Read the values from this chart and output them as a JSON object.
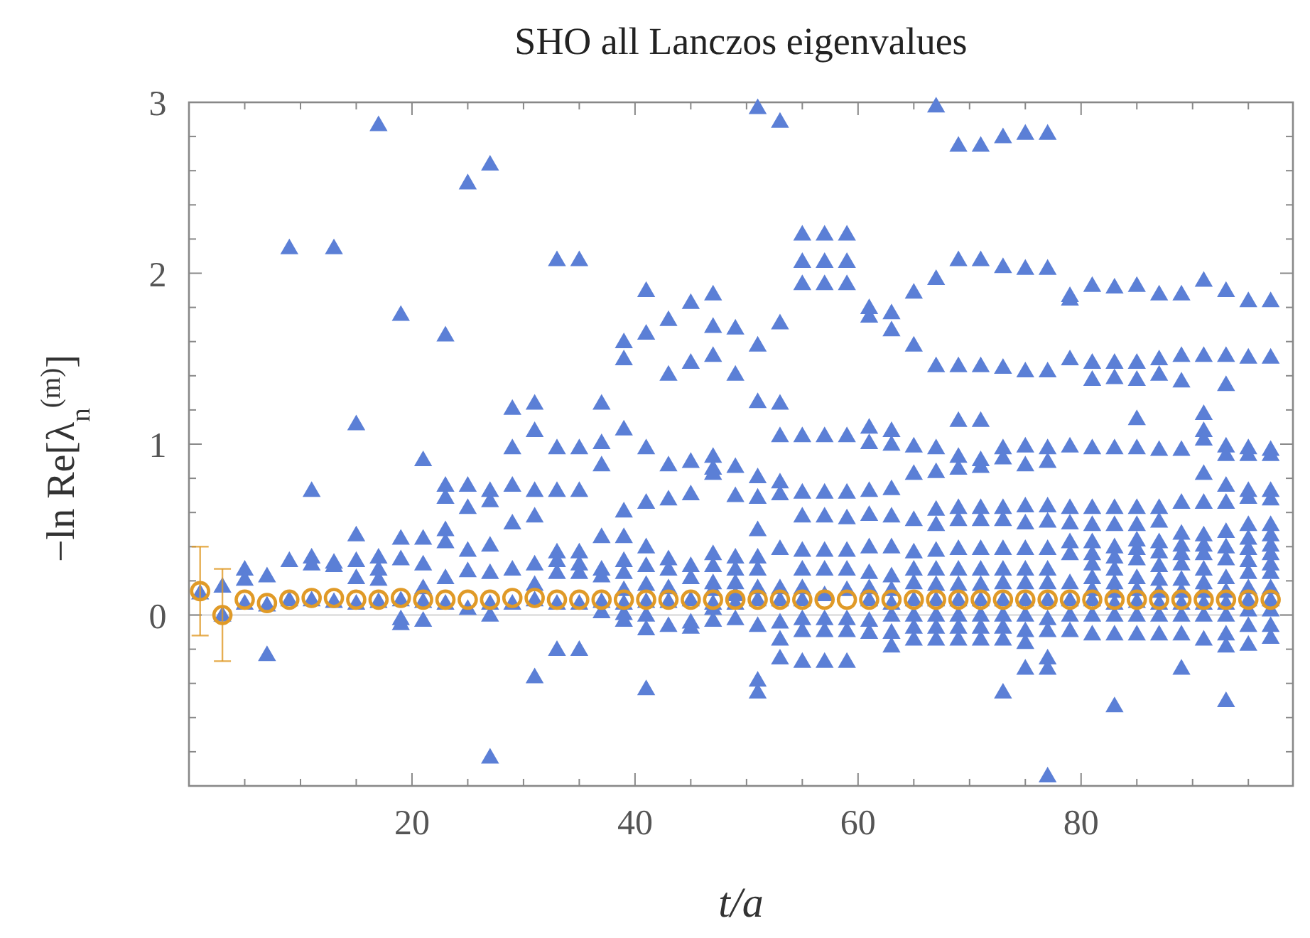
{
  "chart_data": {
    "type": "scatter",
    "title": "SHO all Lanczos eigenvalues",
    "xlabel": "t/a",
    "ylabel": "−ln Re[λ$_{n}$$^{(m)}$]",
    "xlim": [
      0,
      99
    ],
    "ylim": [
      -1,
      3
    ],
    "xticks": [
      {
        "value": 5,
        "label": null
      },
      {
        "value": 10,
        "label": null
      },
      {
        "value": 15,
        "label": null
      },
      20,
      {
        "value": 25,
        "label": null
      },
      {
        "value": 30,
        "label": null
      },
      {
        "value": 35,
        "label": null
      },
      40,
      {
        "value": 45,
        "label": null
      },
      {
        "value": 50,
        "label": null
      },
      {
        "value": 55,
        "label": null
      },
      60,
      {
        "value": 65,
        "label": null
      },
      {
        "value": 70,
        "label": null
      },
      {
        "value": 75,
        "label": null
      },
      80,
      {
        "value": 85,
        "label": null
      },
      {
        "value": 90,
        "label": null
      },
      {
        "value": 95,
        "label": null
      }
    ],
    "yticks": [
      {
        "value": -0.8,
        "label": null
      },
      {
        "value": -0.6,
        "label": null
      },
      {
        "value": -0.4,
        "label": null
      },
      {
        "value": -0.2,
        "label": null
      },
      0,
      {
        "value": 0.2,
        "label": null
      },
      {
        "value": 0.4,
        "label": null
      },
      {
        "value": 0.6,
        "label": null
      },
      {
        "value": 0.8,
        "label": null
      },
      1,
      {
        "value": 1.2,
        "label": null
      },
      {
        "value": 1.4,
        "label": null
      },
      {
        "value": 1.6,
        "label": null
      },
      {
        "value": 1.8,
        "label": null
      },
      2,
      {
        "value": 2.2,
        "label": null
      },
      {
        "value": 2.4,
        "label": null
      },
      {
        "value": 2.6,
        "label": null
      },
      {
        "value": 2.8,
        "label": null
      },
      3
    ],
    "ref_lines": [
      {
        "axis": "y",
        "value": 0,
        "color": "#dddddd"
      }
    ],
    "series": [
      {
        "type": "scatter",
        "marker": "triangle",
        "color": "#5b7fd6",
        "x": [
          1,
          3,
          3,
          5,
          5,
          5,
          7,
          7,
          7,
          9,
          9,
          9,
          11,
          11,
          11,
          11,
          13,
          13,
          13,
          13,
          15,
          15,
          15,
          15,
          15,
          17,
          17,
          17,
          17,
          17,
          19,
          19,
          19,
          19,
          19,
          19,
          21,
          21,
          21,
          21,
          21,
          21,
          23,
          23,
          23,
          23,
          23,
          23,
          23,
          25,
          25,
          25,
          25,
          25,
          25,
          27,
          27,
          27,
          27,
          27,
          27,
          27,
          27,
          29,
          29,
          29,
          29,
          29,
          29,
          31,
          31,
          31,
          31,
          31,
          31,
          31,
          31,
          33,
          33,
          33,
          33,
          33,
          33,
          33,
          33,
          35,
          35,
          35,
          35,
          35,
          35,
          35,
          35,
          37,
          37,
          37,
          37,
          37,
          37,
          37,
          37,
          39,
          39,
          39,
          39,
          39,
          39,
          39,
          39,
          39,
          39,
          39,
          41,
          41,
          41,
          41,
          41,
          41,
          41,
          41,
          41,
          41,
          41,
          43,
          43,
          43,
          43,
          43,
          43,
          43,
          43,
          43,
          45,
          45,
          45,
          45,
          45,
          45,
          45,
          45,
          45,
          47,
          47,
          47,
          47,
          47,
          47,
          47,
          47,
          47,
          47,
          47,
          47,
          47,
          49,
          49,
          49,
          49,
          49,
          49,
          49,
          49,
          49,
          49,
          51,
          51,
          51,
          51,
          51,
          51,
          51,
          51,
          51,
          51,
          51,
          51,
          51,
          53,
          53,
          53,
          53,
          53,
          53,
          53,
          53,
          53,
          53,
          53,
          53,
          55,
          55,
          55,
          55,
          55,
          55,
          55,
          55,
          55,
          55,
          55,
          55,
          55,
          57,
          57,
          57,
          57,
          57,
          57,
          57,
          57,
          57,
          57,
          57,
          57,
          59,
          59,
          59,
          59,
          59,
          59,
          59,
          59,
          59,
          59,
          59,
          59,
          61,
          61,
          61,
          61,
          61,
          61,
          61,
          61,
          61,
          61,
          61,
          61,
          63,
          63,
          63,
          63,
          63,
          63,
          63,
          63,
          63,
          63,
          63,
          63,
          63,
          65,
          65,
          65,
          65,
          65,
          65,
          65,
          65,
          65,
          65,
          65,
          65,
          67,
          67,
          67,
          67,
          67,
          67,
          67,
          67,
          67,
          67,
          67,
          67,
          67,
          67,
          69,
          69,
          69,
          69,
          69,
          69,
          69,
          69,
          69,
          69,
          69,
          69,
          69,
          69,
          69,
          71,
          71,
          71,
          71,
          71,
          71,
          71,
          71,
          71,
          71,
          71,
          71,
          71,
          71,
          71,
          73,
          73,
          73,
          73,
          73,
          73,
          73,
          73,
          73,
          73,
          73,
          73,
          73,
          73,
          73,
          75,
          75,
          75,
          75,
          75,
          75,
          75,
          75,
          75,
          75,
          75,
          75,
          75,
          75,
          75,
          77,
          77,
          77,
          77,
          77,
          77,
          77,
          77,
          77,
          77,
          77,
          77,
          77,
          77,
          77,
          77,
          79,
          79,
          79,
          79,
          79,
          79,
          79,
          79,
          79,
          79,
          79,
          79,
          81,
          81,
          81,
          81,
          81,
          81,
          81,
          81,
          81,
          81,
          81,
          81,
          81,
          81,
          83,
          83,
          83,
          83,
          83,
          83,
          83,
          83,
          83,
          83,
          83,
          83,
          83,
          83,
          83,
          85,
          85,
          85,
          85,
          85,
          85,
          85,
          85,
          85,
          85,
          85,
          85,
          85,
          85,
          85,
          87,
          87,
          87,
          87,
          87,
          87,
          87,
          87,
          87,
          87,
          87,
          87,
          87,
          87,
          89,
          89,
          89,
          89,
          89,
          89,
          89,
          89,
          89,
          89,
          89,
          89,
          89,
          89,
          89,
          91,
          91,
          91,
          91,
          91,
          91,
          91,
          91,
          91,
          91,
          91,
          91,
          91,
          91,
          91,
          91,
          93,
          93,
          93,
          93,
          93,
          93,
          93,
          93,
          93,
          93,
          93,
          93,
          93,
          93,
          93,
          93,
          93,
          95,
          95,
          95,
          95,
          95,
          95,
          95,
          95,
          95,
          95,
          95,
          95,
          95,
          95,
          95,
          95,
          97,
          97,
          97,
          97,
          97,
          97,
          97,
          97,
          97,
          97,
          97,
          97,
          97,
          97,
          97,
          97,
          97
        ],
        "values": [
          0.13,
          0.17,
          0.0,
          0.27,
          0.21,
          0.07,
          0.23,
          0.06,
          -0.23,
          2.15,
          0.32,
          0.09,
          0.73,
          0.34,
          0.3,
          0.09,
          2.15,
          0.31,
          0.29,
          0.08,
          1.12,
          0.47,
          0.32,
          0.22,
          0.07,
          2.87,
          0.34,
          0.27,
          0.21,
          0.08,
          1.76,
          0.45,
          0.33,
          0.09,
          -0.02,
          -0.05,
          0.91,
          0.45,
          0.3,
          0.16,
          0.08,
          -0.03,
          1.64,
          0.76,
          0.69,
          0.5,
          0.43,
          0.22,
          0.07,
          2.53,
          0.76,
          0.63,
          0.38,
          0.26,
          0.04,
          2.64,
          0.73,
          0.67,
          0.41,
          0.25,
          0.07,
          0.0,
          -0.83,
          1.21,
          0.98,
          0.76,
          0.54,
          0.27,
          0.07,
          1.24,
          1.08,
          0.73,
          0.58,
          0.3,
          0.18,
          0.09,
          -0.36,
          2.08,
          0.98,
          0.73,
          0.37,
          0.32,
          0.25,
          0.07,
          -0.2,
          2.08,
          0.98,
          0.73,
          0.37,
          0.3,
          0.25,
          0.07,
          -0.2,
          1.24,
          1.01,
          0.88,
          0.46,
          0.27,
          0.23,
          0.08,
          0.02,
          1.6,
          1.5,
          1.09,
          0.61,
          0.46,
          0.32,
          0.25,
          0.15,
          0.07,
          0.01,
          -0.03,
          1.9,
          1.65,
          0.98,
          0.66,
          0.4,
          0.29,
          0.18,
          0.08,
          0.0,
          -0.08,
          -0.43,
          1.73,
          1.41,
          0.88,
          0.68,
          0.33,
          0.27,
          0.16,
          0.08,
          -0.06,
          1.83,
          1.48,
          0.9,
          0.71,
          0.29,
          0.22,
          0.09,
          -0.04,
          -0.07,
          1.88,
          1.69,
          1.52,
          0.93,
          0.86,
          0.83,
          0.36,
          0.29,
          0.19,
          0.15,
          0.07,
          0.04,
          -0.03,
          1.68,
          1.41,
          0.87,
          0.7,
          0.34,
          0.27,
          0.19,
          0.12,
          0.07,
          -0.02,
          2.97,
          1.58,
          1.25,
          0.81,
          0.69,
          0.5,
          0.34,
          0.27,
          0.16,
          0.09,
          -0.06,
          -0.38,
          -0.45,
          2.89,
          1.71,
          1.24,
          1.05,
          0.78,
          0.71,
          0.39,
          0.16,
          0.09,
          -0.04,
          -0.14,
          -0.25,
          2.23,
          2.07,
          1.94,
          1.05,
          0.72,
          0.58,
          0.38,
          0.27,
          0.16,
          0.09,
          -0.02,
          -0.09,
          -0.27,
          2.23,
          2.07,
          1.94,
          1.05,
          0.72,
          0.58,
          0.38,
          0.27,
          0.12,
          -0.02,
          -0.09,
          -0.27,
          2.23,
          2.07,
          1.94,
          1.05,
          0.72,
          0.57,
          0.38,
          0.27,
          0.15,
          -0.02,
          -0.09,
          -0.27,
          1.8,
          1.75,
          1.1,
          1.01,
          0.73,
          0.59,
          0.4,
          0.25,
          0.16,
          0.09,
          -0.03,
          -0.1,
          1.77,
          1.67,
          1.08,
          1.0,
          0.74,
          0.58,
          0.4,
          0.23,
          0.15,
          0.07,
          0.0,
          -0.1,
          -0.18,
          1.89,
          1.58,
          0.99,
          0.83,
          0.56,
          0.37,
          0.27,
          0.19,
          0.09,
          0.0,
          -0.07,
          -0.14,
          2.98,
          1.97,
          1.46,
          0.98,
          0.84,
          0.62,
          0.53,
          0.38,
          0.27,
          0.18,
          0.09,
          0.0,
          -0.07,
          -0.14,
          2.75,
          2.08,
          1.46,
          1.14,
          0.93,
          0.86,
          0.63,
          0.56,
          0.39,
          0.27,
          0.18,
          0.09,
          0.0,
          -0.07,
          -0.14,
          2.75,
          2.08,
          1.46,
          1.14,
          0.91,
          0.87,
          0.63,
          0.56,
          0.39,
          0.27,
          0.18,
          0.09,
          0.0,
          -0.07,
          -0.14,
          2.8,
          2.04,
          1.45,
          0.98,
          0.92,
          0.63,
          0.56,
          0.39,
          0.27,
          0.19,
          0.09,
          0.0,
          -0.07,
          -0.14,
          -0.45,
          2.82,
          2.03,
          1.43,
          0.99,
          0.88,
          0.64,
          0.54,
          0.39,
          0.27,
          0.19,
          0.09,
          0.0,
          -0.09,
          -0.16,
          -0.31,
          2.82,
          2.03,
          1.43,
          0.98,
          0.9,
          0.64,
          0.55,
          0.39,
          0.27,
          0.19,
          0.09,
          -0.02,
          -0.09,
          -0.25,
          -0.31,
          -0.94,
          1.87,
          1.85,
          1.5,
          0.99,
          0.63,
          0.54,
          0.43,
          0.36,
          0.19,
          0.09,
          0.0,
          -0.09,
          1.93,
          1.48,
          1.38,
          0.98,
          0.63,
          0.53,
          0.43,
          0.36,
          0.3,
          0.22,
          0.15,
          0.09,
          0.0,
          -0.11,
          1.92,
          1.48,
          1.39,
          0.98,
          0.63,
          0.53,
          0.4,
          0.34,
          0.27,
          0.19,
          0.14,
          0.07,
          0.0,
          -0.11,
          -0.53,
          1.93,
          1.48,
          1.38,
          1.15,
          0.98,
          0.63,
          0.53,
          0.44,
          0.39,
          0.33,
          0.22,
          0.15,
          0.08,
          0.0,
          -0.11,
          1.88,
          1.5,
          1.41,
          0.97,
          0.63,
          0.55,
          0.43,
          0.37,
          0.29,
          0.21,
          0.14,
          0.07,
          0.0,
          -0.11,
          1.88,
          1.52,
          1.37,
          0.97,
          0.66,
          0.48,
          0.41,
          0.36,
          0.3,
          0.21,
          0.14,
          0.07,
          0.0,
          -0.11,
          -0.31,
          1.96,
          1.52,
          1.18,
          1.08,
          1.03,
          0.83,
          0.66,
          0.47,
          0.41,
          0.36,
          0.27,
          0.19,
          0.14,
          0.07,
          0.0,
          -0.14,
          1.9,
          1.52,
          1.35,
          0.99,
          0.94,
          0.76,
          0.66,
          0.49,
          0.4,
          0.33,
          0.22,
          0.14,
          0.07,
          0.0,
          -0.11,
          -0.18,
          -0.5,
          1.84,
          1.51,
          0.98,
          0.94,
          0.73,
          0.69,
          0.53,
          0.45,
          0.39,
          0.32,
          0.25,
          0.16,
          0.09,
          0.03,
          -0.06,
          -0.17,
          1.84,
          1.51,
          0.97,
          0.94,
          0.73,
          0.68,
          0.53,
          0.47,
          0.41,
          0.36,
          0.3,
          0.25,
          0.16,
          0.09,
          0.03,
          -0.06,
          -0.13
        ]
      },
      {
        "type": "scatter",
        "marker": "circle",
        "color": "#e09a27",
        "x": [
          1,
          3,
          5,
          7,
          9,
          11,
          13,
          15,
          17,
          19,
          21,
          23,
          25,
          27,
          29,
          31,
          33,
          35,
          37,
          39,
          41,
          43,
          45,
          47,
          49,
          51,
          53,
          55,
          57,
          59,
          61,
          63,
          65,
          67,
          69,
          71,
          73,
          75,
          77,
          79,
          81,
          83,
          85,
          87,
          89,
          91,
          93,
          95,
          97
        ],
        "values": [
          0.14,
          0.0,
          0.09,
          0.07,
          0.09,
          0.1,
          0.1,
          0.09,
          0.09,
          0.1,
          0.09,
          0.09,
          0.09,
          0.09,
          0.1,
          0.1,
          0.09,
          0.09,
          0.09,
          0.09,
          0.09,
          0.09,
          0.09,
          0.09,
          0.09,
          0.09,
          0.09,
          0.09,
          0.09,
          0.09,
          0.09,
          0.09,
          0.09,
          0.09,
          0.09,
          0.09,
          0.09,
          0.09,
          0.09,
          0.09,
          0.09,
          0.09,
          0.09,
          0.09,
          0.09,
          0.09,
          0.09,
          0.09,
          0.09
        ],
        "errors": [
          0.26,
          0.27,
          null,
          null,
          null,
          null,
          null,
          null,
          null,
          null,
          null,
          null,
          null,
          null,
          null,
          null,
          null,
          null,
          null,
          null,
          null,
          null,
          null,
          null,
          null,
          null,
          null,
          null,
          null,
          null,
          null,
          null,
          null,
          null,
          null,
          null,
          null,
          null,
          null,
          null,
          null,
          null,
          null,
          null,
          null,
          null,
          null,
          null,
          null
        ]
      }
    ]
  }
}
